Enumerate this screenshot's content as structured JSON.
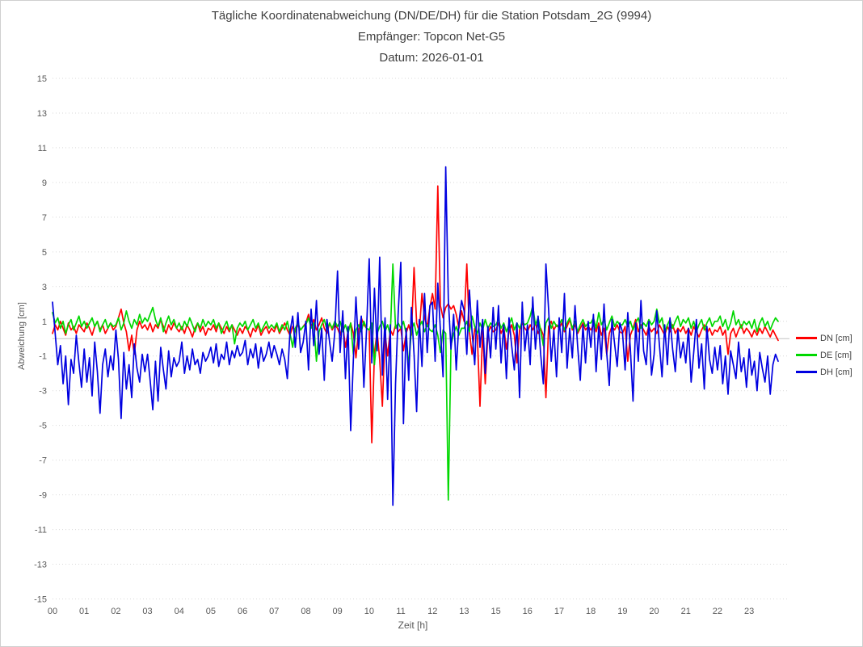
{
  "chart_data": {
    "type": "line",
    "title": "Tägliche Koordinatenabweichung (DN/DE/DH) für die Station Potsdam_2G (9994)",
    "subtitle_receiver": "Empfänger: Topcon Net-G5",
    "subtitle_date": "Datum: 2026-01-01",
    "xlabel": "Zeit [h]",
    "ylabel": "Abweichung [cm]",
    "x_tick_labels": [
      "00",
      "01",
      "02",
      "03",
      "04",
      "05",
      "06",
      "07",
      "08",
      "09",
      "10",
      "11",
      "12",
      "13",
      "15",
      "16",
      "17",
      "18",
      "19",
      "20",
      "21",
      "22",
      "23"
    ],
    "points_per_hour": 12,
    "ylim": [
      -15,
      15
    ],
    "yticks": [
      15,
      13,
      11,
      9,
      7,
      5,
      3,
      1,
      -1,
      -3,
      -5,
      -7,
      -9,
      -11,
      -13,
      -15
    ],
    "grid": "horizontal-dotted",
    "zero_line": true,
    "legend_position": "right",
    "colors": {
      "grid": "#d9d9d9",
      "zero_line": "#c3c3c3",
      "tick_text": "#595959",
      "title_text": "#3f3f3f"
    },
    "series": [
      {
        "id": "dn",
        "name": "DN [cm]",
        "color": "#ff0000",
        "values": [
          [
            0.3,
            0.8,
            0.5,
            1.0,
            0.6,
            0.2,
            0.9,
            0.5,
            0.7,
            0.3,
            0.8,
            0.6
          ],
          [
            0.4,
            0.9,
            0.6,
            0.2,
            0.7,
            1.0,
            0.5,
            0.8,
            0.3,
            0.6,
            0.9,
            0.5
          ],
          [
            0.7,
            1.2,
            1.7,
            0.9,
            0.4,
            -0.7,
            0.2,
            -0.9,
            0.5,
            1.0,
            0.6,
            0.8
          ],
          [
            0.5,
            0.9,
            0.4,
            0.8,
            0.6,
            1.1,
            0.7,
            0.3,
            0.8,
            0.5,
            0.9,
            0.6
          ],
          [
            0.4,
            0.7,
            0.3,
            0.8,
            0.5,
            0.1,
            0.6,
            0.9,
            0.4,
            0.7,
            0.2,
            0.6
          ],
          [
            0.5,
            0.8,
            0.4,
            0.9,
            0.6,
            0.3,
            0.7,
            0.4,
            0.8,
            0.5,
            0.2,
            0.6
          ],
          [
            0.3,
            0.7,
            0.5,
            0.1,
            0.6,
            0.4,
            0.8,
            0.2,
            0.5,
            0.7,
            0.3,
            0.6
          ],
          [
            0.4,
            0.8,
            0.3,
            0.6,
            0.9,
            0.5,
            0.2,
            0.7,
            0.4,
            0.8,
            0.5,
            0.7
          ],
          [
            0.9,
            1.4,
            0.7,
            1.1,
            0.5,
            0.8,
            1.2,
            0.6,
            0.3,
            0.9,
            0.5,
            0.8
          ],
          [
            0.6,
            0.2,
            0.8,
            -0.5,
            0.4,
            0.9,
            0.3,
            -1.1,
            0.5,
            1.2,
            0.8,
            0.6
          ],
          [
            0.5,
            -6.0,
            -0.8,
            0.4,
            -1.2,
            -3.9,
            0.3,
            -1.0,
            0.5,
            0.2,
            0.8,
            0.4
          ],
          [
            0.6,
            -0.7,
            0.3,
            0.8,
            0.2,
            4.1,
            0.9,
            0.4,
            2.6,
            1.2,
            0.7,
            1.8
          ],
          [
            2.6,
            1.7,
            8.8,
            1.9,
            1.2,
            1.8,
            2.0,
            1.7,
            1.9,
            1.4,
            0.6,
            1.6
          ],
          [
            1.0,
            4.3,
            0.4,
            -0.9,
            0.6,
            0.2,
            -3.9,
            0.5,
            -2.6,
            0.3,
            0.7,
            0.4
          ],
          [
            0.5,
            0.9,
            0.3,
            0.7,
            -0.6,
            0.4,
            0.8,
            0.2,
            -1.4,
            0.5,
            0.9,
            0.6
          ],
          [
            0.4,
            0.8,
            0.5,
            0.9,
            0.3,
            0.6,
            0.2,
            -3.4,
            0.7,
            1.0,
            0.5,
            0.8
          ],
          [
            0.6,
            0.9,
            0.4,
            0.7,
            1.1,
            0.5,
            0.8,
            0.3,
            0.6,
            0.9,
            0.5,
            0.7
          ],
          [
            0.5,
            0.8,
            0.4,
            0.9,
            0.2,
            0.6,
            -0.9,
            0.3,
            0.7,
            0.5,
            0.8,
            0.4
          ],
          [
            0.3,
            0.7,
            -1.3,
            0.2,
            0.6,
            1.1,
            0.4,
            0.8,
            0.5,
            0.2,
            0.7,
            0.4
          ],
          [
            0.6,
            0.3,
            0.8,
            0.5,
            0.2,
            0.7,
            0.4,
            0.8,
            0.3,
            0.6,
            0.4,
            0.7
          ],
          [
            0.3,
            0.6,
            0.2,
            0.7,
            0.4,
            0.1,
            0.5,
            0.8,
            0.3,
            0.6,
            0.2,
            0.5
          ],
          [
            0.4,
            0.7,
            0.2,
            0.5,
            -0.9,
            0.3,
            0.6,
            0.1,
            0.5,
            0.8,
            0.3,
            0.6
          ],
          [
            0.4,
            0.1,
            0.5,
            0.2,
            0.6,
            0.3,
            0.7,
            0.4,
            0.1,
            0.5,
            0.2,
            -0.1
          ]
        ]
      },
      {
        "id": "de",
        "name": "DE [cm]",
        "color": "#00d800",
        "values": [
          [
            1.5,
            0.9,
            1.2,
            0.6,
            1.0,
            0.3,
            0.8,
            1.1,
            0.5,
            0.9,
            1.3,
            0.7
          ],
          [
            1.0,
            0.6,
            0.9,
            1.2,
            0.7,
            1.0,
            0.4,
            0.8,
            1.1,
            0.6,
            0.9,
            0.7
          ],
          [
            0.8,
            1.2,
            0.5,
            0.9,
            1.6,
            1.0,
            0.6,
            1.1,
            0.8,
            1.4,
            0.9,
            1.2
          ],
          [
            1.0,
            1.4,
            1.8,
            1.1,
            0.7,
            1.2,
            0.4,
            0.9,
            1.3,
            0.8,
            1.1,
            0.6
          ],
          [
            0.9,
            0.5,
            1.0,
            0.7,
            1.2,
            0.8,
            0.4,
            0.9,
            0.6,
            1.1,
            0.7,
            1.0
          ],
          [
            0.8,
            1.1,
            0.6,
            0.9,
            0.3,
            0.7,
            1.0,
            0.5,
            0.8,
            -0.3,
            0.6,
            0.9
          ],
          [
            0.7,
            1.0,
            0.5,
            0.8,
            1.1,
            0.6,
            0.9,
            0.4,
            0.7,
            1.0,
            0.6,
            0.8
          ],
          [
            0.6,
            0.9,
            0.4,
            0.8,
            0.5,
            1.0,
            0.3,
            -0.5,
            0.6,
            0.9,
            0.5,
            0.7
          ],
          [
            0.8,
            1.2,
            0.6,
            0.9,
            -1.3,
            0.4,
            0.8,
            1.1,
            0.5,
            0.9,
            0.6,
            1.0
          ],
          [
            0.7,
            1.0,
            0.4,
            0.8,
            0.3,
            0.9,
            -0.9,
            0.5,
            0.8,
            0.4,
            1.0,
            0.6
          ],
          [
            0.5,
            0.9,
            -1.5,
            0.3,
            0.7,
            1.0,
            0.4,
            0.8,
            0.2,
            4.3,
            0.6,
            0.9
          ],
          [
            0.6,
            1.0,
            0.3,
            -1.6,
            0.5,
            0.9,
            0.2,
            0.7,
            1.0,
            0.4,
            0.8,
            0.5
          ],
          [
            0.4,
            0.8,
            0.2,
            -0.8,
            0.5,
            0.3,
            -9.3,
            -0.4,
            0.3,
            0.7,
            0.2,
            0.6
          ],
          [
            0.6,
            1.0,
            0.4,
            1.3,
            0.7,
            0.3,
            0.9,
            0.5,
            1.1,
            0.6,
            0.9,
            0.7
          ],
          [
            0.8,
            1.1,
            0.6,
            0.9,
            0.4,
            0.8,
            1.2,
            0.5,
            0.9,
            0.6,
            1.0,
            0.8
          ],
          [
            0.9,
            1.3,
            1.9,
            0.8,
            1.2,
            0.5,
            -0.4,
            0.9,
            1.2,
            0.6,
            1.0,
            0.7
          ],
          [
            0.8,
            1.1,
            0.5,
            0.9,
            1.2,
            0.6,
            1.0,
            0.4,
            0.8,
            1.1,
            0.7,
            0.9
          ],
          [
            0.9,
            1.2,
            0.6,
            1.5,
            0.8,
            1.1,
            0.5,
            0.9,
            1.3,
            0.7,
            1.0,
            0.8
          ],
          [
            0.8,
            1.1,
            0.7,
            1.0,
            0.5,
            0.9,
            1.2,
            0.6,
            0.9,
            0.7,
            1.1,
            0.8
          ],
          [
            1.0,
            1.7,
            0.9,
            1.2,
            0.3,
            0.8,
            1.1,
            0.6,
            1.0,
            1.3,
            0.7,
            1.1
          ],
          [
            0.9,
            1.2,
            0.6,
            1.0,
            0.4,
            0.8,
            1.1,
            0.5,
            0.9,
            1.2,
            0.7,
            1.0
          ],
          [
            1.0,
            1.3,
            0.7,
            1.1,
            0.5,
            0.9,
            1.6,
            0.8,
            1.1,
            0.6,
            1.0,
            0.8
          ],
          [
            1.0,
            0.6,
            1.1,
            0.4,
            0.9,
            1.2,
            0.7,
            1.0,
            0.5,
            0.9,
            1.2,
            1.0
          ]
        ]
      },
      {
        "id": "dh",
        "name": "DH [cm]",
        "color": "#0000e0",
        "values": [
          [
            2.1,
            0.3,
            -1.5,
            -0.4,
            -2.6,
            -1.0,
            -3.8,
            -1.2,
            -2.0,
            0.2,
            -1.4,
            -2.8
          ],
          [
            -0.6,
            -2.5,
            -1.1,
            -3.3,
            -0.2,
            -1.9,
            -4.3,
            -1.5,
            -0.6,
            -2.2,
            -1.0,
            -1.8
          ],
          [
            0.5,
            -1.2,
            -4.6,
            -0.8,
            -2.9,
            -1.5,
            -3.4,
            -0.3,
            -1.7,
            -2.5,
            -0.9,
            -1.9
          ],
          [
            -0.9,
            -2.4,
            -4.1,
            -1.3,
            -3.6,
            -0.5,
            -1.8,
            -2.9,
            -0.7,
            -2.2,
            -1.1,
            -1.6
          ],
          [
            -1.3,
            -0.2,
            -2.0,
            -1.0,
            -1.8,
            -0.6,
            -1.5,
            -1.2,
            -2.0,
            -0.8,
            -1.3,
            -1.0
          ],
          [
            -0.5,
            -1.4,
            -0.3,
            -1.6,
            -0.9,
            -1.2,
            -0.2,
            -1.5,
            -0.7,
            -1.1,
            -0.4,
            -1.0
          ],
          [
            -0.8,
            -0.1,
            -1.5,
            -0.6,
            -1.1,
            -0.3,
            -1.7,
            -0.5,
            -1.3,
            -0.9,
            -0.2,
            -1.1
          ],
          [
            -0.4,
            -0.9,
            -1.5,
            -0.6,
            -1.2,
            -2.3,
            0.4,
            1.3,
            -0.5,
            1.5,
            -0.8,
            -0.2
          ],
          [
            1.0,
            -1.8,
            1.7,
            -0.4,
            2.2,
            -0.9,
            0.6,
            -2.4,
            1.1,
            -0.2,
            -1.3,
            0.4
          ],
          [
            3.9,
            -0.8,
            1.6,
            -2.3,
            0.7,
            -5.3,
            -1.2,
            2.4,
            -0.6,
            1.3,
            -2.8,
            0.5
          ],
          [
            4.6,
            -1.4,
            2.9,
            -0.7,
            4.7,
            -2.1,
            1.2,
            -3.5,
            0.8,
            -9.6,
            -2.6,
            1.5
          ],
          [
            4.4,
            -4.9,
            0.6,
            -2.4,
            1.8,
            -0.9,
            -4.2,
            1.1,
            -1.6,
            2.6,
            -0.8,
            1.9
          ],
          [
            2.1,
            -1.3,
            3.2,
            0.5,
            -2.2,
            9.9,
            2.3,
            -0.6,
            1.4,
            -1.8,
            0.9,
            2.2
          ],
          [
            1.6,
            -0.9,
            2.8,
            0.4,
            -1.5,
            2.2,
            -0.5,
            1.1,
            -2.0,
            0.7,
            -1.1,
            1.8
          ],
          [
            -0.6,
            1.9,
            -1.4,
            0.8,
            -2.3,
            1.2,
            -0.4,
            -1.8,
            0.9,
            -3.4,
            2.1,
            -0.7
          ],
          [
            0.8,
            -1.5,
            2.4,
            -0.6,
            1.3,
            -0.9,
            -2.6,
            4.3,
            1.7,
            -1.3,
            0.5,
            -2.2
          ],
          [
            1.2,
            -0.8,
            2.6,
            -1.7,
            0.6,
            -1.1,
            1.9,
            -0.4,
            -2.4,
            0.8,
            -1.4,
            1.0
          ],
          [
            -0.5,
            1.4,
            -1.9,
            0.7,
            -1.2,
            2.0,
            -0.8,
            -2.7,
            1.1,
            -0.3,
            -1.6,
            0.9
          ],
          [
            0.4,
            -1.8,
            1.5,
            -0.6,
            -3.6,
            0.9,
            -1.3,
            2.2,
            -0.7,
            -1.5,
            1.0,
            -2.1
          ],
          [
            -0.9,
            1.6,
            -0.4,
            -2.2,
            0.8,
            -1.5,
            1.2,
            -0.6,
            -1.9,
            0.5,
            -1.1,
            -0.2
          ],
          [
            -1.4,
            0.6,
            -2.5,
            -0.8,
            1.1,
            -1.7,
            -0.3,
            -2.9,
            0.7,
            -1.2,
            -2.0,
            -0.5
          ],
          [
            -1.8,
            -0.4,
            -2.6,
            -1.0,
            -3.2,
            -0.7,
            -1.5,
            -2.3,
            -0.2,
            -1.9,
            -1.1,
            -2.8
          ],
          [
            -0.6,
            -2.1,
            -1.3,
            -3.0,
            -0.8,
            -1.7,
            -2.5,
            -1.0,
            -3.2,
            -1.5,
            -0.9,
            -1.3
          ]
        ]
      }
    ]
  }
}
